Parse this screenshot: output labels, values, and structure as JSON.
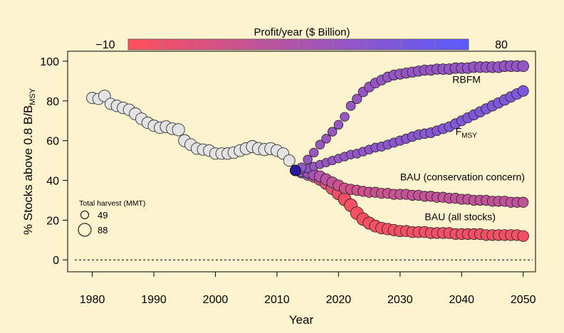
{
  "chart_data": {
    "type": "scatter",
    "xlabel": "Year",
    "ylabel_main": "% Stocks above 0.8 B/B",
    "ylabel_sub": "MSY",
    "xlim": [
      1976,
      2052
    ],
    "ylim": [
      -6,
      105
    ],
    "x_ticks": [
      1980,
      1990,
      2000,
      2010,
      2020,
      2030,
      2040,
      2050
    ],
    "y_ticks": [
      0,
      20,
      40,
      60,
      80,
      100
    ],
    "reference_line": 0,
    "colorbar": {
      "title": "Profit/year ($ Billion)",
      "min_label": "−10",
      "max_label": "80",
      "range": [
        -10,
        80
      ],
      "color_low": "#ff4f5a",
      "color_high": "#5a5aff"
    },
    "size_legend": {
      "title": "Total harvest (MMT)",
      "entries": [
        {
          "label": "49",
          "value": 49
        },
        {
          "label": "88",
          "value": 88
        }
      ]
    },
    "historical": {
      "color": "#e3e3e3",
      "points": [
        [
          1980,
          81.5,
          77
        ],
        [
          1981,
          81,
          77
        ],
        [
          1982,
          82.5,
          80
        ],
        [
          1983,
          78.5,
          78
        ],
        [
          1984,
          77.5,
          79
        ],
        [
          1985,
          76.5,
          79
        ],
        [
          1986,
          75.5,
          80
        ],
        [
          1987,
          73.5,
          82
        ],
        [
          1988,
          71,
          80
        ],
        [
          1989,
          69,
          79
        ],
        [
          1990,
          67.5,
          78
        ],
        [
          1991,
          66.5,
          79
        ],
        [
          1992,
          67,
          82
        ],
        [
          1993,
          66,
          81
        ],
        [
          1994,
          65.5,
          84
        ],
        [
          1995,
          60,
          83
        ],
        [
          1996,
          58,
          81
        ],
        [
          1997,
          56,
          79
        ],
        [
          1998,
          55.5,
          78
        ],
        [
          1999,
          55,
          79
        ],
        [
          2000,
          53.5,
          78
        ],
        [
          2001,
          53.5,
          78
        ],
        [
          2002,
          53.5,
          79
        ],
        [
          2003,
          54,
          80
        ],
        [
          2004,
          55,
          81
        ],
        [
          2005,
          56,
          82
        ],
        [
          2006,
          57,
          83
        ],
        [
          2007,
          56,
          84
        ],
        [
          2008,
          55.5,
          84
        ],
        [
          2009,
          56,
          83
        ],
        [
          2010,
          55,
          81
        ],
        [
          2011,
          53.5,
          78
        ],
        [
          2012,
          50,
          77
        ]
      ]
    },
    "series": [
      {
        "name": "RBFM",
        "points": [
          [
            2013,
            45,
            70,
            52
          ],
          [
            2014,
            46.5,
            60,
            50
          ],
          [
            2015,
            50.5,
            58,
            46
          ],
          [
            2016,
            54,
            58,
            44
          ],
          [
            2017,
            58,
            58,
            44
          ],
          [
            2018,
            61,
            58,
            45
          ],
          [
            2019,
            64.5,
            58,
            45
          ],
          [
            2020,
            68,
            58,
            46
          ],
          [
            2021,
            72,
            58,
            47
          ],
          [
            2022,
            77.5,
            60,
            47
          ],
          [
            2023,
            81,
            62,
            48
          ],
          [
            2024,
            84.5,
            64,
            48
          ],
          [
            2025,
            87,
            65,
            48
          ],
          [
            2026,
            89,
            66,
            48
          ],
          [
            2027,
            90.5,
            66,
            48
          ],
          [
            2028,
            92,
            67,
            48
          ],
          [
            2029,
            93,
            67,
            48
          ],
          [
            2030,
            93.5,
            68,
            48
          ],
          [
            2031,
            94,
            68,
            48
          ],
          [
            2032,
            94.5,
            68,
            48
          ],
          [
            2033,
            95,
            69,
            48
          ],
          [
            2034,
            95.5,
            69,
            48
          ],
          [
            2035,
            95.5,
            70,
            48
          ],
          [
            2036,
            96,
            70,
            48
          ],
          [
            2037,
            96,
            71,
            48
          ],
          [
            2038,
            96,
            71,
            48
          ],
          [
            2039,
            96.5,
            72,
            48
          ],
          [
            2040,
            96.5,
            72,
            48
          ],
          [
            2041,
            96.5,
            72,
            48
          ],
          [
            2042,
            97,
            73,
            48
          ],
          [
            2043,
            97,
            73,
            48
          ],
          [
            2044,
            97,
            73,
            48
          ],
          [
            2045,
            97,
            74,
            48
          ],
          [
            2046,
            97,
            74,
            48
          ],
          [
            2047,
            97.5,
            74,
            48
          ],
          [
            2048,
            97.5,
            75,
            48
          ],
          [
            2049,
            97.5,
            75,
            48
          ],
          [
            2050,
            97.5,
            75,
            49
          ]
        ]
      },
      {
        "name": "F",
        "name_sub": "MSY",
        "points": [
          [
            2013,
            45,
            70,
            52
          ],
          [
            2014,
            45.5,
            58,
            50
          ],
          [
            2015,
            46,
            55,
            48
          ],
          [
            2016,
            47,
            55,
            46
          ],
          [
            2017,
            48,
            54,
            45
          ],
          [
            2018,
            49,
            55,
            46
          ],
          [
            2019,
            50,
            56,
            47
          ],
          [
            2020,
            51,
            56,
            47
          ],
          [
            2021,
            52,
            57,
            48
          ],
          [
            2022,
            53,
            57,
            49
          ],
          [
            2023,
            53.5,
            58,
            50
          ],
          [
            2024,
            54.5,
            58,
            50
          ],
          [
            2025,
            55.5,
            59,
            51
          ],
          [
            2026,
            56.5,
            59,
            51
          ],
          [
            2027,
            57,
            60,
            52
          ],
          [
            2028,
            58,
            60,
            52
          ],
          [
            2029,
            59,
            61,
            53
          ],
          [
            2030,
            60,
            62,
            53
          ],
          [
            2031,
            61,
            62,
            54
          ],
          [
            2032,
            62,
            63,
            54
          ],
          [
            2033,
            63,
            63,
            55
          ],
          [
            2034,
            63.5,
            64,
            55
          ],
          [
            2035,
            64,
            65,
            56
          ],
          [
            2036,
            65,
            65,
            56
          ],
          [
            2037,
            66,
            66,
            57
          ],
          [
            2038,
            67,
            66,
            57
          ],
          [
            2039,
            68.5,
            67,
            57
          ],
          [
            2040,
            70,
            67,
            58
          ],
          [
            2041,
            71.5,
            68,
            58
          ],
          [
            2042,
            73,
            68,
            58
          ],
          [
            2043,
            74.5,
            69,
            59
          ],
          [
            2044,
            76,
            69,
            59
          ],
          [
            2045,
            77.5,
            70,
            59
          ],
          [
            2046,
            79,
            70,
            60
          ],
          [
            2047,
            80.5,
            71,
            60
          ],
          [
            2048,
            82,
            71,
            60
          ],
          [
            2049,
            83.5,
            72,
            61
          ],
          [
            2050,
            85,
            72,
            61
          ]
        ]
      },
      {
        "name": "BAU (conservation concern)",
        "points": [
          [
            2013,
            45,
            70,
            52
          ],
          [
            2014,
            44.5,
            70,
            48
          ],
          [
            2015,
            44,
            72,
            44
          ],
          [
            2016,
            43,
            74,
            38
          ],
          [
            2017,
            42,
            76,
            32
          ],
          [
            2018,
            40.5,
            76,
            27
          ],
          [
            2019,
            39,
            75,
            22
          ],
          [
            2020,
            37.5,
            74,
            18
          ],
          [
            2021,
            36,
            72,
            16
          ],
          [
            2022,
            35.5,
            70,
            15
          ],
          [
            2023,
            35,
            69,
            16
          ],
          [
            2024,
            34.5,
            68,
            17
          ],
          [
            2025,
            34,
            68,
            18
          ],
          [
            2026,
            34,
            68,
            19
          ],
          [
            2027,
            33.5,
            68,
            20
          ],
          [
            2028,
            33.5,
            68,
            20
          ],
          [
            2029,
            33,
            68,
            21
          ],
          [
            2030,
            33,
            68,
            21
          ],
          [
            2031,
            33,
            68,
            22
          ],
          [
            2032,
            32.5,
            68,
            22
          ],
          [
            2033,
            32.5,
            68,
            22
          ],
          [
            2034,
            32,
            68,
            23
          ],
          [
            2035,
            32,
            68,
            23
          ],
          [
            2036,
            31.5,
            68,
            23
          ],
          [
            2037,
            31.5,
            68,
            23
          ],
          [
            2038,
            31,
            68,
            24
          ],
          [
            2039,
            31,
            68,
            24
          ],
          [
            2040,
            30.5,
            68,
            24
          ],
          [
            2041,
            30.5,
            68,
            24
          ],
          [
            2042,
            30,
            68,
            24
          ],
          [
            2043,
            30,
            68,
            25
          ],
          [
            2044,
            30,
            68,
            25
          ],
          [
            2045,
            29.5,
            68,
            25
          ],
          [
            2046,
            29.5,
            68,
            25
          ],
          [
            2047,
            29.5,
            68,
            25
          ],
          [
            2048,
            29,
            68,
            25
          ],
          [
            2049,
            29,
            68,
            25
          ],
          [
            2050,
            29,
            68,
            25
          ]
        ]
      },
      {
        "name": "BAU (all stocks)",
        "points": [
          [
            2013,
            45,
            70,
            52
          ],
          [
            2014,
            44,
            74,
            44
          ],
          [
            2015,
            43,
            78,
            34
          ],
          [
            2016,
            42,
            80,
            24
          ],
          [
            2017,
            40.5,
            82,
            15
          ],
          [
            2018,
            38.5,
            84,
            8
          ],
          [
            2019,
            36,
            86,
            3
          ],
          [
            2020,
            33.5,
            88,
            0
          ],
          [
            2021,
            30.5,
            88,
            -3
          ],
          [
            2022,
            27.5,
            88,
            -5
          ],
          [
            2023,
            23.5,
            88,
            -6
          ],
          [
            2024,
            20.5,
            86,
            -6
          ],
          [
            2025,
            18.5,
            84,
            -5
          ],
          [
            2026,
            17,
            82,
            -5
          ],
          [
            2027,
            16,
            80,
            -4
          ],
          [
            2028,
            15.5,
            79,
            -4
          ],
          [
            2029,
            15,
            78,
            -4
          ],
          [
            2030,
            14.5,
            77,
            -3
          ],
          [
            2031,
            14.5,
            76,
            -3
          ],
          [
            2032,
            14,
            76,
            -3
          ],
          [
            2033,
            14,
            76,
            -3
          ],
          [
            2034,
            14,
            75,
            -3
          ],
          [
            2035,
            13.5,
            75,
            -3
          ],
          [
            2036,
            13.5,
            75,
            -3
          ],
          [
            2037,
            13.5,
            75,
            -3
          ],
          [
            2038,
            13.5,
            75,
            -3
          ],
          [
            2039,
            13,
            74,
            -3
          ],
          [
            2040,
            13,
            74,
            -3
          ],
          [
            2041,
            13,
            74,
            -3
          ],
          [
            2042,
            13,
            74,
            -3
          ],
          [
            2043,
            13,
            74,
            -3
          ],
          [
            2044,
            12.5,
            74,
            -3
          ],
          [
            2045,
            12.5,
            74,
            -3
          ],
          [
            2046,
            12.5,
            74,
            -3
          ],
          [
            2047,
            12.5,
            74,
            -3
          ],
          [
            2048,
            12.5,
            74,
            -3
          ],
          [
            2049,
            12.5,
            74,
            -3
          ],
          [
            2050,
            12,
            74,
            -3
          ]
        ]
      }
    ],
    "annotations": [
      {
        "text": "RBFM",
        "x": 2038.5,
        "y": 89
      },
      {
        "text": "F",
        "sub": "MSY",
        "x": 2039,
        "y": 63
      },
      {
        "text": "BAU (conservation concern)",
        "x": 2030,
        "y": 40
      },
      {
        "text": "BAU (all stocks)",
        "x": 2034,
        "y": 20
      }
    ]
  }
}
